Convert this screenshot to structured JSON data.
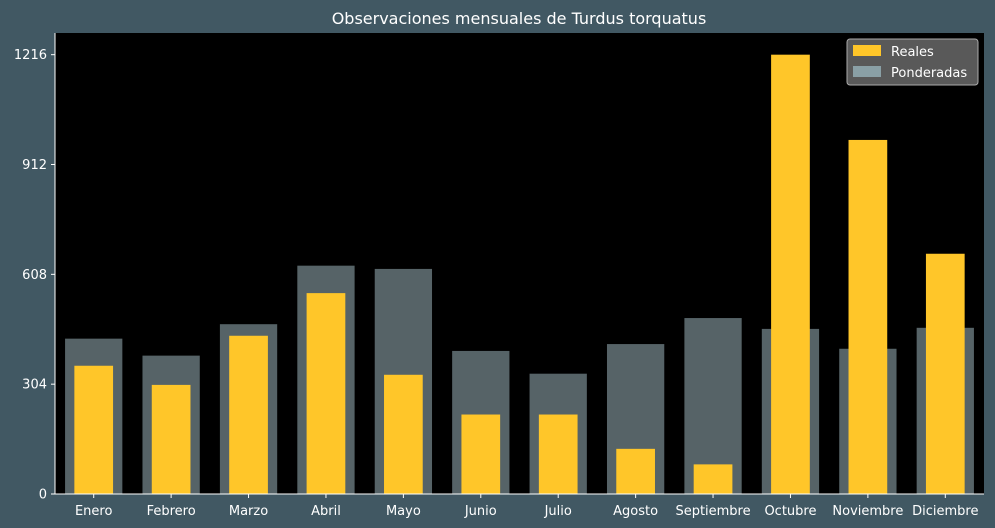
{
  "chart_data": {
    "type": "bar",
    "title": "Observaciones mensuales de Turdus torquatus",
    "xlabel": "",
    "ylabel": "",
    "categories": [
      "Enero",
      "Febrero",
      "Marzo",
      "Abril",
      "Mayo",
      "Junio",
      "Julio",
      "Agosto",
      "Septiembre",
      "Octubre",
      "Noviembre",
      "Diciembre"
    ],
    "series": [
      {
        "name": "Reales",
        "values": [
          355,
          302,
          438,
          556,
          330,
          220,
          220,
          125,
          82,
          1216,
          980,
          665
        ],
        "color": "#ffc629"
      },
      {
        "name": "Ponderadas",
        "values": [
          430,
          383,
          470,
          632,
          623,
          396,
          333,
          415,
          487,
          457,
          402,
          460
        ],
        "color": "#8aa0a6"
      }
    ],
    "ylim": [
      0,
      1276
    ],
    "yticks": [
      0,
      304,
      608,
      912,
      1216
    ],
    "grid": false,
    "legend_position": "top-right",
    "colors": {
      "figure_background": "#415863",
      "plot_background": "#000000",
      "text": "#ffffff",
      "legend_background": "#595959",
      "legend_border": "#aaaaaa"
    }
  }
}
